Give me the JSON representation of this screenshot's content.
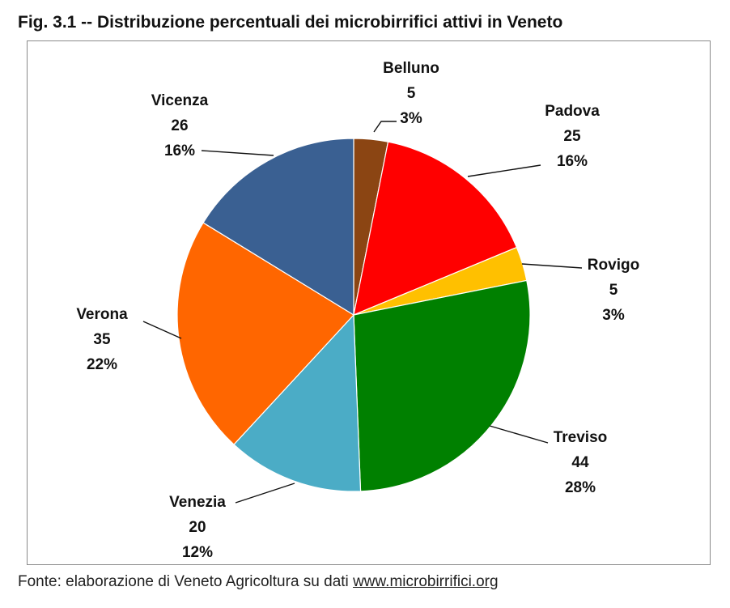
{
  "title": "Fig. 3.1 -- Distribuzione percentuali dei microbirrifici attivi in Veneto",
  "source": {
    "prefix": "Fonte: elaborazione di Veneto Agricoltura su dati ",
    "link": "www.microbirrifici.org"
  },
  "chart_data": {
    "type": "pie",
    "start_angle_deg": 0,
    "direction": "clockwise",
    "slices": [
      {
        "label": "Belluno",
        "value": 5,
        "percent": "3%",
        "color": "#8B4513"
      },
      {
        "label": "Padova",
        "value": 25,
        "percent": "16%",
        "color": "#FF0000"
      },
      {
        "label": "Rovigo",
        "value": 5,
        "percent": "3%",
        "color": "#FFC000"
      },
      {
        "label": "Treviso",
        "value": 44,
        "percent": "28%",
        "color": "#008000"
      },
      {
        "label": "Venezia",
        "value": 20,
        "percent": "12%",
        "color": "#4BACC6"
      },
      {
        "label": "Verona",
        "value": 35,
        "percent": "22%",
        "color": "#FF6600"
      },
      {
        "label": "Vicenza",
        "value": 26,
        "percent": "16%",
        "color": "#3A6092"
      }
    ]
  }
}
